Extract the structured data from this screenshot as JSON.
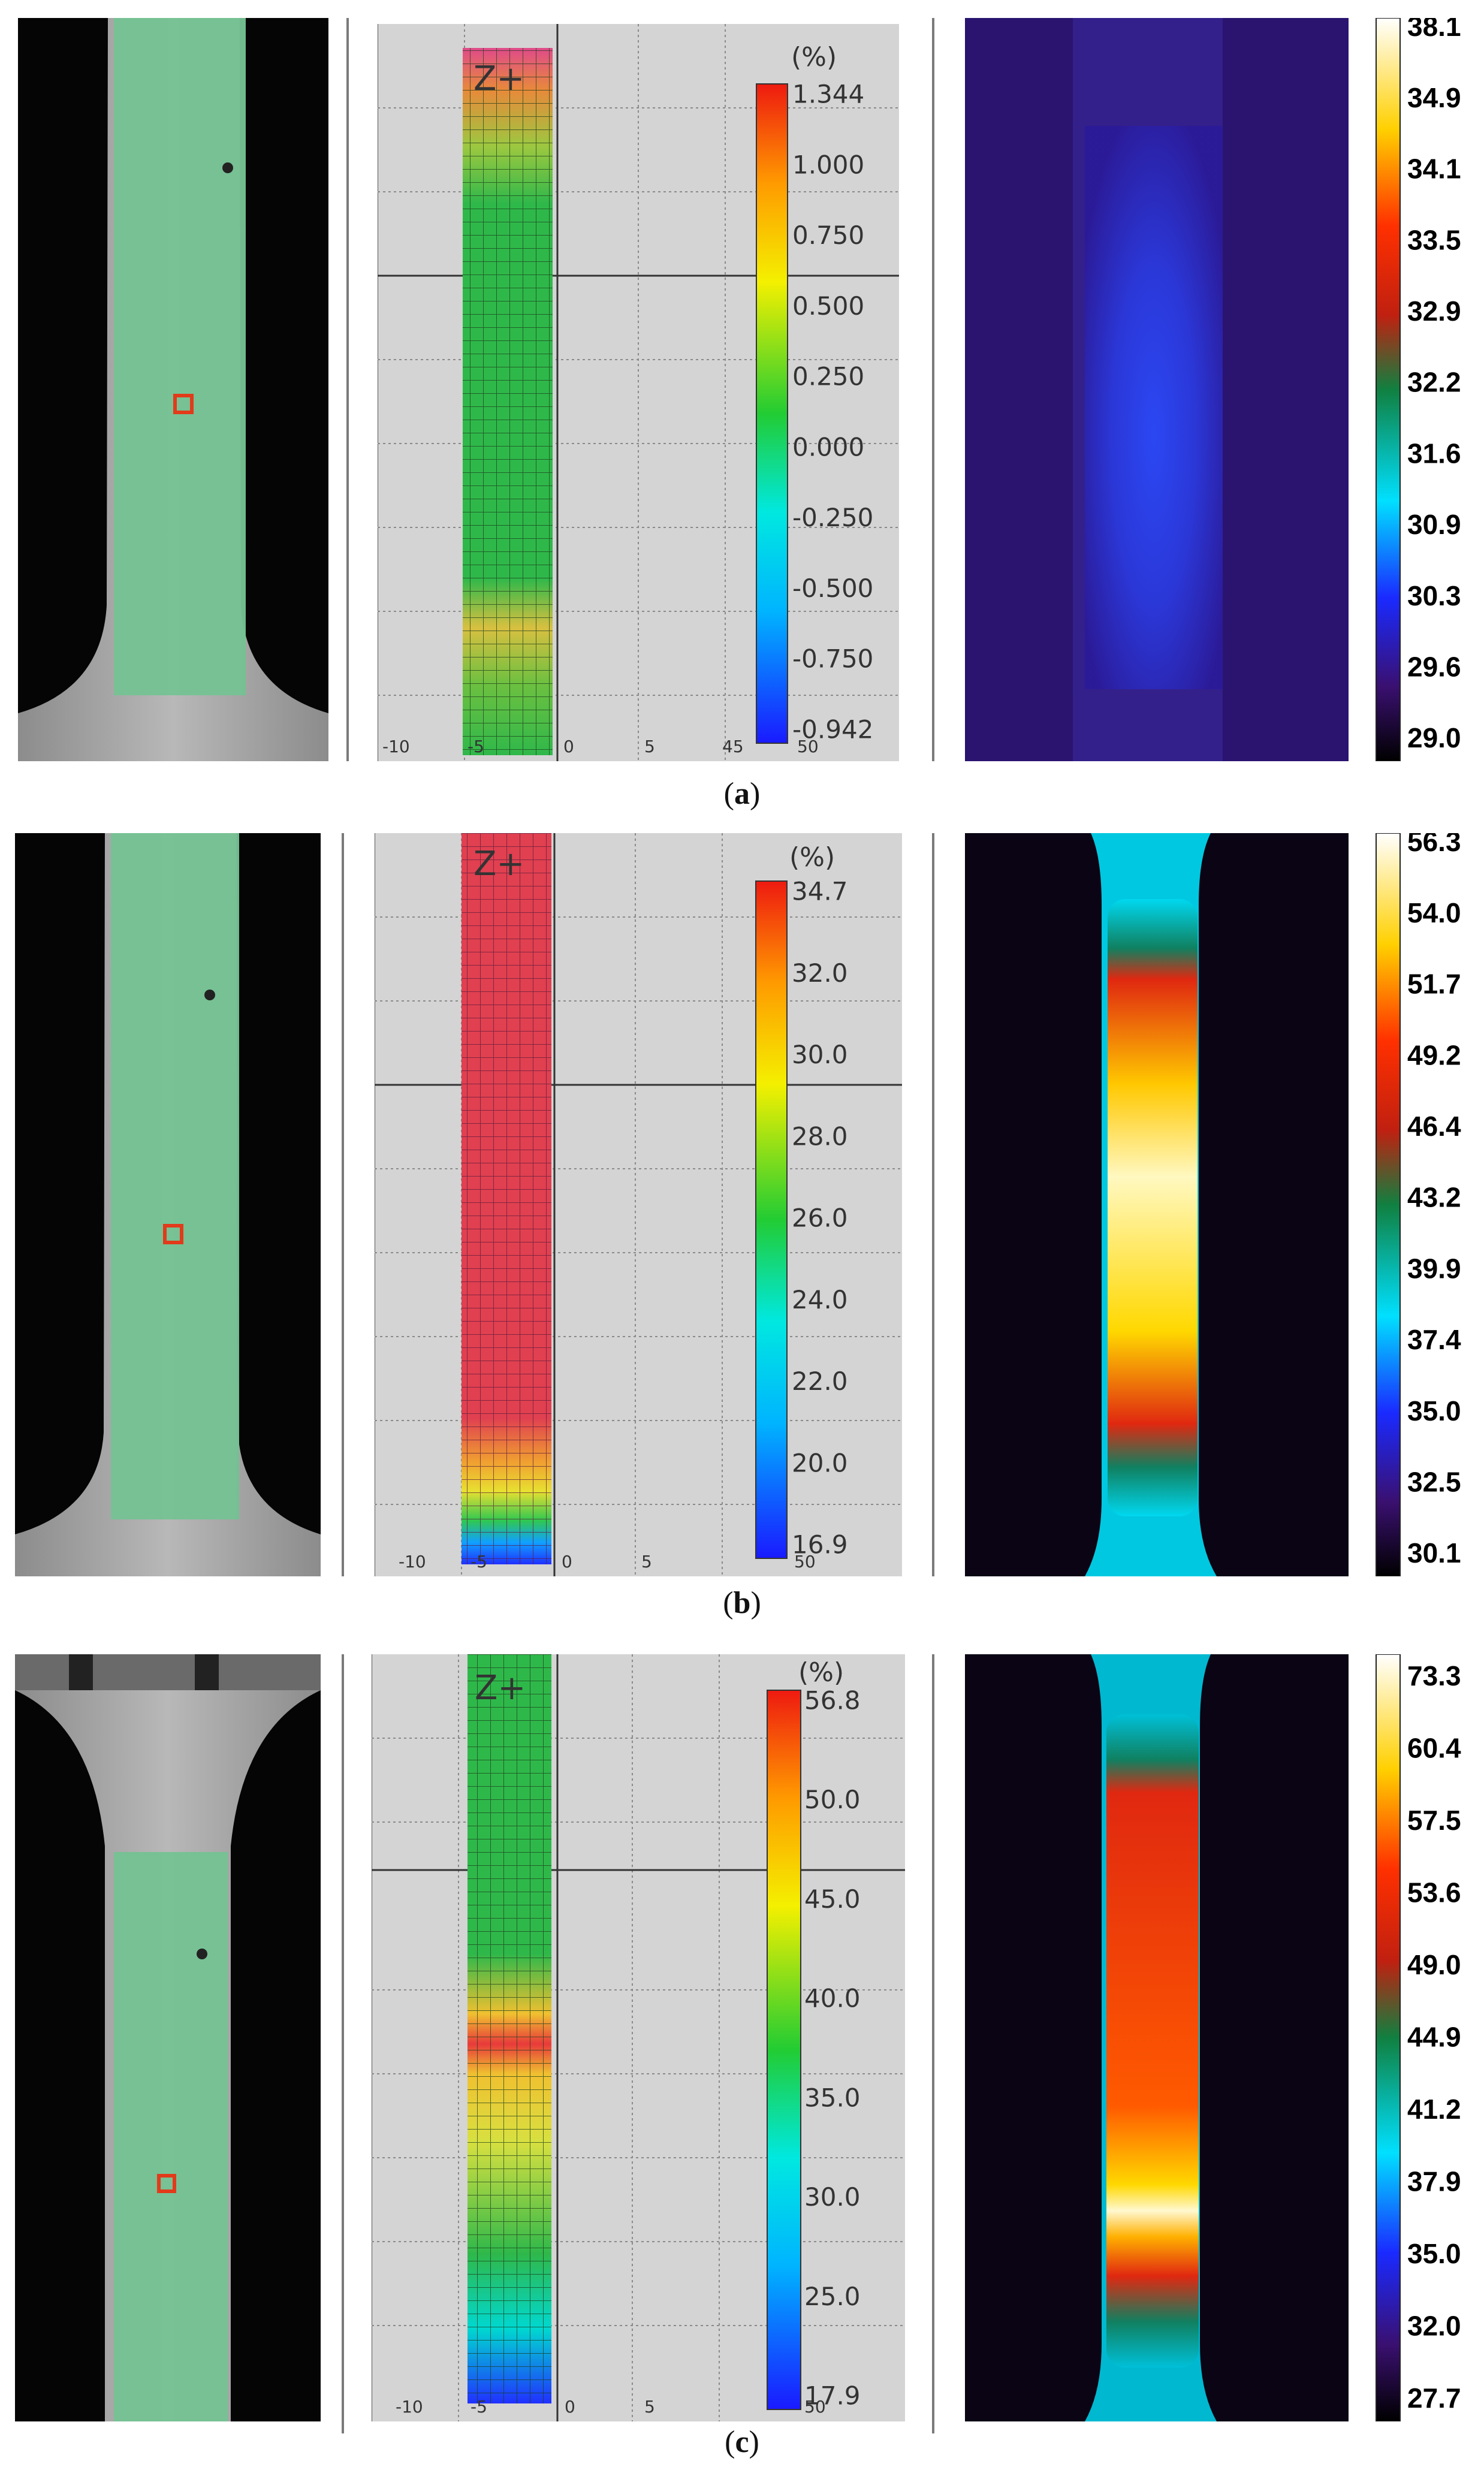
{
  "panels": [
    {
      "id": "a",
      "caption_letter": "a",
      "strain_scale": {
        "unit": "(%)",
        "ticks": [
          "1.344",
          "1.000",
          "0.750",
          "0.500",
          "0.250",
          "0.000",
          "-0.250",
          "-0.500",
          "-0.750",
          "-0.942"
        ]
      },
      "strain_axis": [
        "-10",
        "-5",
        "0",
        "5",
        "45",
        "50"
      ],
      "temp_scale": {
        "ticks": [
          "38.1",
          "34.9",
          "34.1",
          "33.5",
          "32.9",
          "32.2",
          "31.6",
          "30.9",
          "30.3",
          "29.6",
          "29.0"
        ]
      }
    },
    {
      "id": "b",
      "caption_letter": "b",
      "strain_scale": {
        "unit": "(%)",
        "ticks": [
          "34.7",
          "32.0",
          "30.0",
          "28.0",
          "26.0",
          "24.0",
          "22.0",
          "20.0",
          "16.9"
        ]
      },
      "strain_axis": [
        "-10",
        "-5",
        "0",
        "5",
        "50"
      ],
      "temp_scale": {
        "ticks": [
          "56.3",
          "54.0",
          "51.7",
          "49.2",
          "46.4",
          "43.2",
          "39.9",
          "37.4",
          "35.0",
          "32.5",
          "30.1"
        ]
      }
    },
    {
      "id": "c",
      "caption_letter": "c",
      "strain_scale": {
        "unit": "(%)",
        "ticks": [
          "56.8",
          "50.0",
          "45.0",
          "40.0",
          "35.0",
          "30.0",
          "25.0",
          "17.9"
        ]
      },
      "strain_axis": [
        "-10",
        "-5",
        "0",
        "5",
        "50"
      ],
      "temp_scale": {
        "ticks": [
          "73.3",
          "60.4",
          "57.5",
          "53.6",
          "49.0",
          "44.9",
          "41.2",
          "37.9",
          "35.0",
          "32.0",
          "27.7"
        ]
      }
    }
  ],
  "dic_overlay_label": "Z+",
  "colors": {
    "specimen_green": "#7cc89a",
    "grid_bg": "#d4d4d4",
    "ir_background": "#0a0414"
  }
}
